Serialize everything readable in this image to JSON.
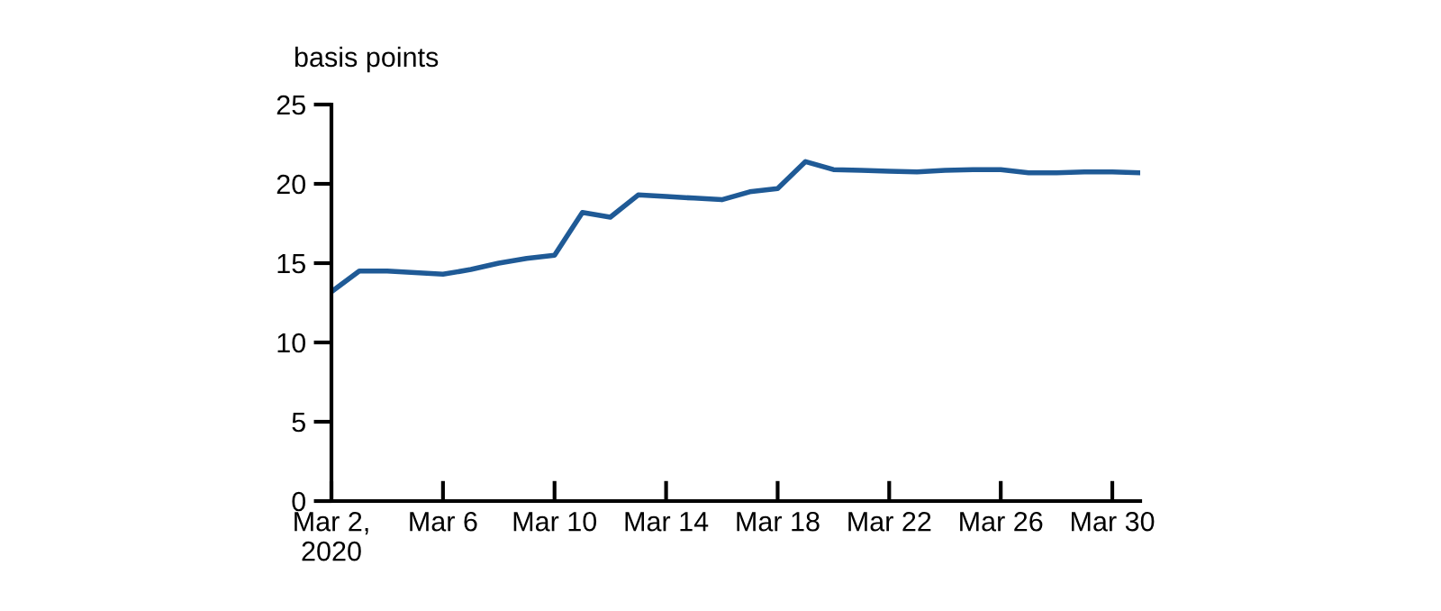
{
  "chart_data": {
    "type": "line",
    "ylabel": "basis points",
    "x": [
      "2020-03-02",
      "2020-03-03",
      "2020-03-04",
      "2020-03-05",
      "2020-03-06",
      "2020-03-07",
      "2020-03-08",
      "2020-03-09",
      "2020-03-10",
      "2020-03-11",
      "2020-03-12",
      "2020-03-13",
      "2020-03-14",
      "2020-03-15",
      "2020-03-16",
      "2020-03-17",
      "2020-03-18",
      "2020-03-19",
      "2020-03-20",
      "2020-03-21",
      "2020-03-22",
      "2020-03-23",
      "2020-03-24",
      "2020-03-25",
      "2020-03-26",
      "2020-03-27",
      "2020-03-28",
      "2020-03-29",
      "2020-03-30",
      "2020-03-31"
    ],
    "series": [
      {
        "color": "#1f5a96",
        "values": [
          13.2,
          14.5,
          14.5,
          14.4,
          14.3,
          14.6,
          15.0,
          15.3,
          15.5,
          18.2,
          17.9,
          19.3,
          19.2,
          19.1,
          19.0,
          19.5,
          19.7,
          21.4,
          20.9,
          20.85,
          20.8,
          20.75,
          20.85,
          20.9,
          20.9,
          20.7,
          20.7,
          20.75,
          20.75,
          20.7
        ]
      }
    ],
    "xlim": [
      "2020-03-02",
      "2020-03-31"
    ],
    "xticks": [
      {
        "value": "2020-03-02",
        "label": "Mar 2,\n2020"
      },
      {
        "value": "2020-03-06",
        "label": "Mar 6"
      },
      {
        "value": "2020-03-10",
        "label": "Mar 10"
      },
      {
        "value": "2020-03-14",
        "label": "Mar 14"
      },
      {
        "value": "2020-03-18",
        "label": "Mar 18"
      },
      {
        "value": "2020-03-22",
        "label": "Mar 22"
      },
      {
        "value": "2020-03-26",
        "label": "Mar 26"
      },
      {
        "value": "2020-03-30",
        "label": "Mar 30"
      }
    ],
    "ylim": [
      0,
      25
    ],
    "yticks": [
      0,
      5,
      10,
      15,
      20,
      25
    ],
    "grid": false,
    "legend": false,
    "marker": "none",
    "line_style": "solid"
  }
}
